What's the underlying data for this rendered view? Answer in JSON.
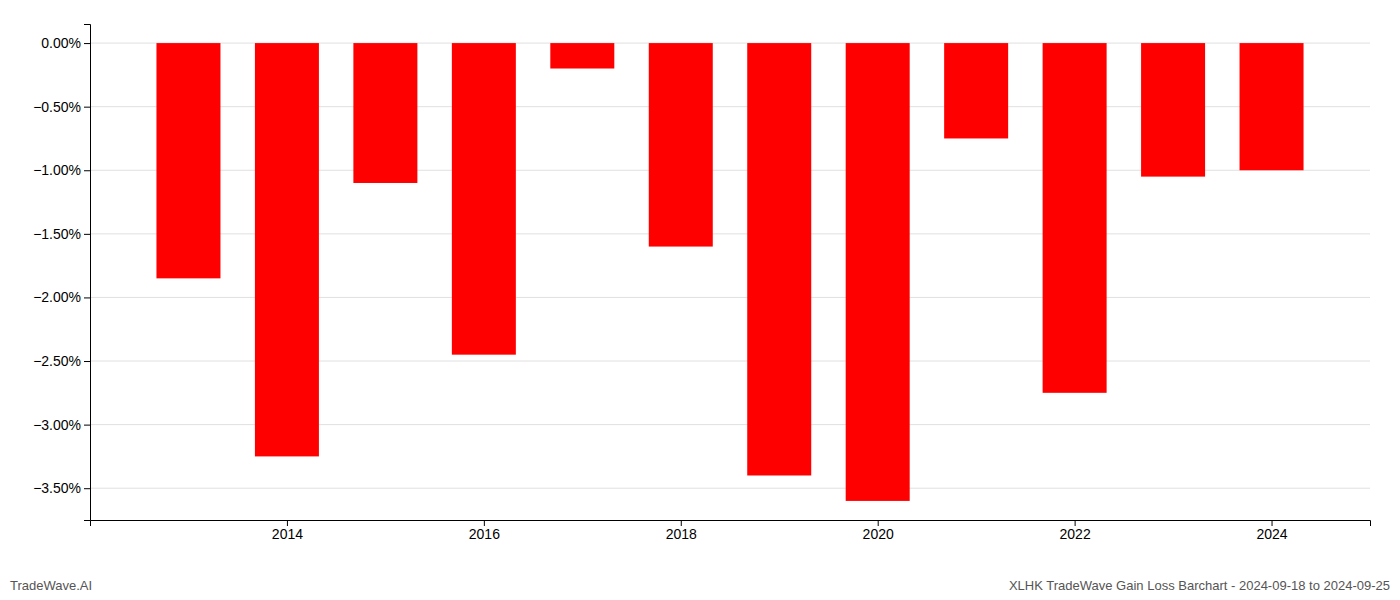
{
  "chart_data": {
    "type": "bar",
    "x": [
      2013,
      2014,
      2015,
      2016,
      2017,
      2018,
      2019,
      2020,
      2021,
      2022,
      2023,
      2024
    ],
    "values": [
      -1.85,
      -3.25,
      -1.1,
      -2.45,
      -0.2,
      -1.6,
      -3.4,
      -3.6,
      -0.75,
      -2.75,
      -1.05,
      -1.0
    ],
    "color": "#ff0000",
    "xlim": [
      2012,
      2025
    ],
    "xticks": [
      2014,
      2016,
      2018,
      2020,
      2022,
      2024
    ],
    "ylim": [
      -3.75,
      0.15
    ],
    "yticks": [
      {
        "value": 0.0,
        "label": "0.00%"
      },
      {
        "value": -0.5,
        "label": "−0.50%"
      },
      {
        "value": -1.0,
        "label": "−1.00%"
      },
      {
        "value": -1.5,
        "label": "−1.50%"
      },
      {
        "value": -2.0,
        "label": "−2.00%"
      },
      {
        "value": -2.5,
        "label": "−2.50%"
      },
      {
        "value": -3.0,
        "label": "−3.00%"
      },
      {
        "value": -3.5,
        "label": "−3.50%"
      }
    ],
    "grid": true,
    "annotations": [
      "TradeWave.AI",
      "XLHK TradeWave Gain Loss Barchart - 2024-09-18 to 2024-09-25"
    ]
  }
}
